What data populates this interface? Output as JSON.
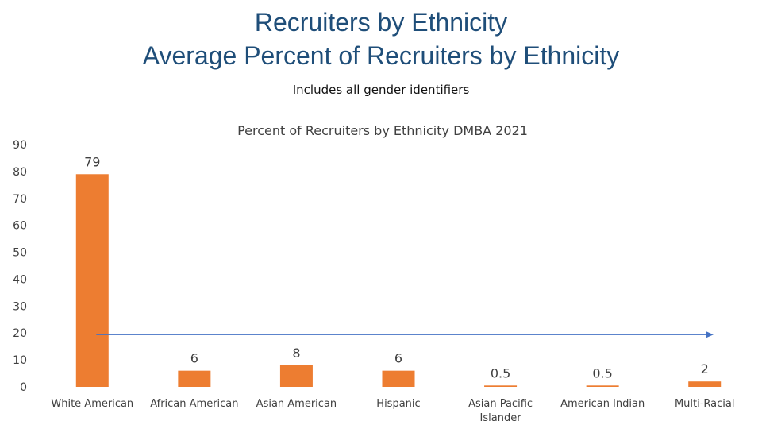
{
  "slide": {
    "title_line1": "Recruiters by Ethnicity",
    "title_line2": "Average Percent of Recruiters by Ethnicity",
    "note": "Includes all gender identifiers"
  },
  "colors": {
    "title": "#1f4e79",
    "bar": "#ed7d31",
    "arrow": "#4472c4",
    "text": "#404040"
  },
  "chart_data": {
    "type": "bar",
    "title": "Percent of Recruiters by Ethnicity DMBA 2021",
    "categories": [
      "White American",
      "African American",
      "Asian American",
      "Hispanic",
      "Asian Pacific Islander",
      "American Indian",
      "Multi-Racial"
    ],
    "category_lines": [
      [
        "White American"
      ],
      [
        "African American"
      ],
      [
        "Asian American"
      ],
      [
        "Hispanic"
      ],
      [
        "Asian Pacific",
        "Islander"
      ],
      [
        "American Indian"
      ],
      [
        "Multi-Racial"
      ]
    ],
    "values": [
      79,
      6,
      8,
      6,
      0.5,
      0.5,
      2
    ],
    "data_labels": [
      "79",
      "6",
      "8",
      "6",
      "0.5",
      "0.5",
      "2"
    ],
    "ylim": [
      0,
      90
    ],
    "yticks": [
      0,
      10,
      20,
      30,
      40,
      50,
      60,
      70,
      80,
      90
    ],
    "grid": false,
    "legend": "none",
    "annotation": {
      "type": "arrow",
      "y_value": 20,
      "from_category": 0.5,
      "to_category": 6.4
    }
  }
}
